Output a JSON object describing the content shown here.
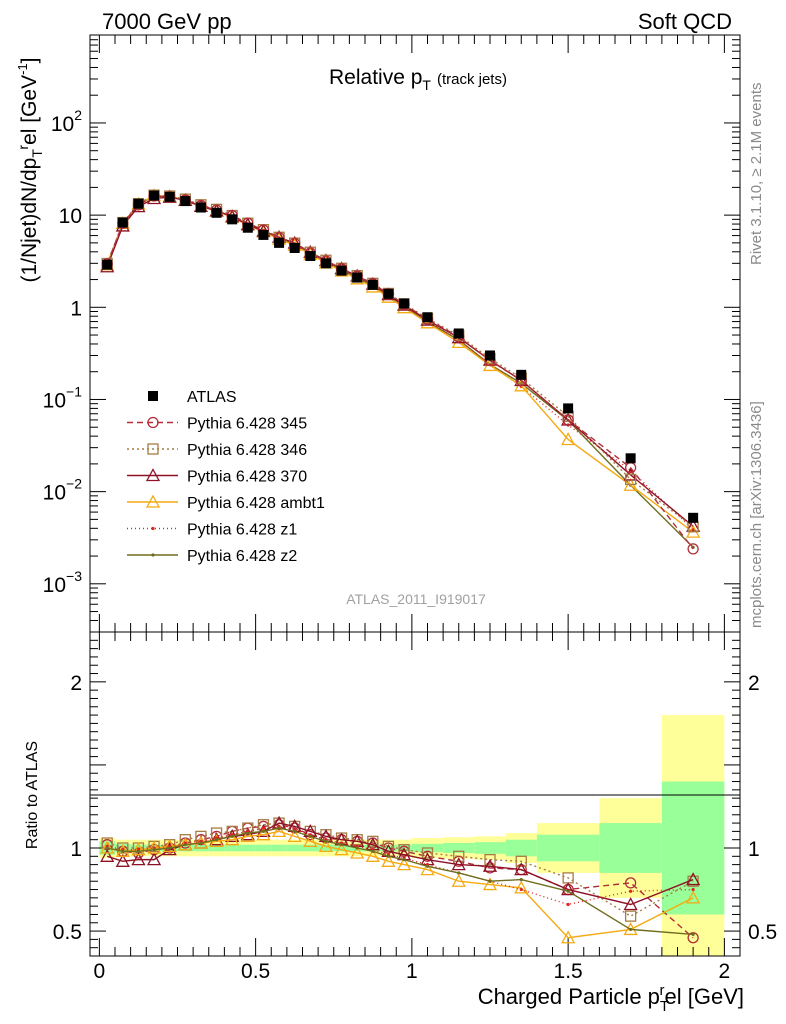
{
  "header": {
    "left": "7000 GeV pp",
    "right": "Soft QCD"
  },
  "side_labels": {
    "top": "Rivet 3.1.10, ≥ 2.1M events",
    "bottom": "mcplots.cern.ch [arXiv:1306.3436]"
  },
  "watermark": "ATLAS_2011_I919017",
  "chart_data": {
    "type": "line",
    "title": "Relative p_T (track jets)",
    "title_parts": {
      "main": "Relative p",
      "sub": "T",
      "extra": "(track jets)"
    },
    "ylabel": "(1/Njet)dN/dp_T^rel [GeV^-1]",
    "ylabel_parts": {
      "a": "(1/Njet)dN/dp",
      "sub": "T",
      "sup": "r",
      "b": "el [GeV",
      "c": "]"
    },
    "xlabel": "Charged Particle p_T^rel [GeV]",
    "xlabel_parts": {
      "a": "Charged Particle p",
      "sub": "T",
      "sup": "r",
      "b": "el [GeV]"
    },
    "ratio_ylabel": "Ratio to ATLAS",
    "main_yscale": "log",
    "main_ylim": [
      0.0003,
      900
    ],
    "main_yticks": [
      {
        "v": 0.001,
        "base": "10",
        "exp": "−3"
      },
      {
        "v": 0.01,
        "base": "10",
        "exp": "−2"
      },
      {
        "v": 0.1,
        "base": "10",
        "exp": "−1"
      },
      {
        "v": 1,
        "base": "1",
        "exp": ""
      },
      {
        "v": 10,
        "base": "10",
        "exp": ""
      },
      {
        "v": 100,
        "base": "10",
        "exp": "2"
      }
    ],
    "xlim": [
      -0.03,
      2.05
    ],
    "xticks": [
      "0",
      "0.5",
      "1",
      "1.5",
      "2"
    ],
    "ratio_ylim": [
      0.35,
      2.3
    ],
    "ratio_yticks": [
      "0.5",
      "1",
      "2"
    ],
    "x": [
      0.025,
      0.075,
      0.125,
      0.175,
      0.225,
      0.275,
      0.325,
      0.375,
      0.425,
      0.475,
      0.525,
      0.575,
      0.625,
      0.675,
      0.725,
      0.775,
      0.825,
      0.875,
      0.925,
      0.975,
      1.05,
      1.15,
      1.25,
      1.35,
      1.5,
      1.7,
      1.9
    ],
    "bin_edges": [
      0,
      0.05,
      0.1,
      0.15,
      0.2,
      0.25,
      0.3,
      0.35,
      0.4,
      0.45,
      0.5,
      0.55,
      0.6,
      0.65,
      0.7,
      0.75,
      0.8,
      0.85,
      0.9,
      0.95,
      1.0,
      1.1,
      1.2,
      1.3,
      1.4,
      1.6,
      1.8,
      2.0
    ],
    "data": {
      "name": "ATLAS",
      "values": [
        2.9,
        8.3,
        13.3,
        16.3,
        15.8,
        14.2,
        12.1,
        10.6,
        9.0,
        7.3,
        6.1,
        5.0,
        4.4,
        3.6,
        3.0,
        2.5,
        2.1,
        1.75,
        1.4,
        1.1,
        0.78,
        0.52,
        0.3,
        0.185,
        0.08,
        0.023,
        0.0052
      ],
      "band_inner": [
        0.04,
        0.025,
        0.02,
        0.02,
        0.02,
        0.02,
        0.02,
        0.02,
        0.02,
        0.02,
        0.02,
        0.02,
        0.02,
        0.02,
        0.02,
        0.02,
        0.02,
        0.02,
        0.02,
        0.02,
        0.025,
        0.03,
        0.035,
        0.05,
        0.08,
        0.15,
        0.4
      ],
      "band_outer": [
        0.06,
        0.05,
        0.05,
        0.05,
        0.05,
        0.05,
        0.05,
        0.05,
        0.05,
        0.05,
        0.05,
        0.05,
        0.05,
        0.05,
        0.05,
        0.05,
        0.05,
        0.05,
        0.05,
        0.05,
        0.06,
        0.065,
        0.07,
        0.09,
        0.15,
        0.3,
        0.8
      ]
    },
    "series": [
      {
        "name": "Pythia 6.428 345",
        "color": "#b22d3a",
        "dash": "6,4",
        "marker": "circle",
        "ratio": [
          1.02,
          0.98,
          0.97,
          0.99,
          1.0,
          1.03,
          1.05,
          1.07,
          1.1,
          1.12,
          1.13,
          1.14,
          1.12,
          1.08,
          1.06,
          1.05,
          1.04,
          1.03,
          1.0,
          0.98,
          0.95,
          0.92,
          0.88,
          0.87,
          0.75,
          0.79,
          0.46
        ]
      },
      {
        "name": "Pythia 6.428 346",
        "color": "#a67c43",
        "dash": "2,3",
        "marker": "square",
        "ratio": [
          1.03,
          1.0,
          1.0,
          1.01,
          1.02,
          1.05,
          1.07,
          1.09,
          1.1,
          1.12,
          1.14,
          1.15,
          1.13,
          1.1,
          1.08,
          1.06,
          1.05,
          1.04,
          1.01,
          0.99,
          0.97,
          0.95,
          0.93,
          0.92,
          0.82,
          0.59,
          0.8
        ]
      },
      {
        "name": "Pythia 6.428 370",
        "color": "#8e1226",
        "dash": "",
        "marker": "triangle",
        "ratio": [
          0.95,
          0.92,
          0.93,
          0.93,
          0.99,
          1.02,
          1.03,
          1.05,
          1.07,
          1.08,
          1.1,
          1.15,
          1.13,
          1.1,
          1.07,
          1.05,
          1.04,
          1.02,
          0.98,
          0.96,
          0.93,
          0.9,
          0.89,
          0.87,
          0.75,
          0.66,
          0.81
        ]
      },
      {
        "name": "Pythia 6.428 ambt1",
        "color": "#f4aa12",
        "dash": "",
        "marker": "triangle",
        "ratio": [
          1.0,
          0.98,
          0.99,
          1.0,
          1.01,
          1.02,
          1.03,
          1.04,
          1.05,
          1.07,
          1.08,
          1.1,
          1.07,
          1.04,
          1.01,
          0.99,
          0.97,
          0.95,
          0.92,
          0.9,
          0.87,
          0.8,
          0.78,
          0.76,
          0.46,
          0.51,
          0.7
        ]
      },
      {
        "name": "Pythia 6.428 z1",
        "color": "#de2323",
        "dash": "1,3",
        "marker": "dot",
        "ratio": [
          1.01,
          0.99,
          0.99,
          1.0,
          1.01,
          1.03,
          1.04,
          1.06,
          1.08,
          1.1,
          1.12,
          1.13,
          1.11,
          1.08,
          1.05,
          1.03,
          1.01,
          0.99,
          0.96,
          0.94,
          0.9,
          0.85,
          0.8,
          0.75,
          0.66,
          0.74,
          0.75
        ]
      },
      {
        "name": "Pythia 6.428 z2",
        "color": "#6f6e1e",
        "dash": "",
        "marker": "dot",
        "ratio": [
          1.0,
          0.98,
          0.98,
          0.99,
          1.0,
          1.02,
          1.03,
          1.05,
          1.07,
          1.09,
          1.1,
          1.12,
          1.1,
          1.07,
          1.04,
          1.02,
          1.0,
          0.98,
          0.95,
          0.93,
          0.89,
          0.85,
          0.8,
          0.81,
          0.74,
          0.51,
          0.48
        ]
      }
    ]
  }
}
